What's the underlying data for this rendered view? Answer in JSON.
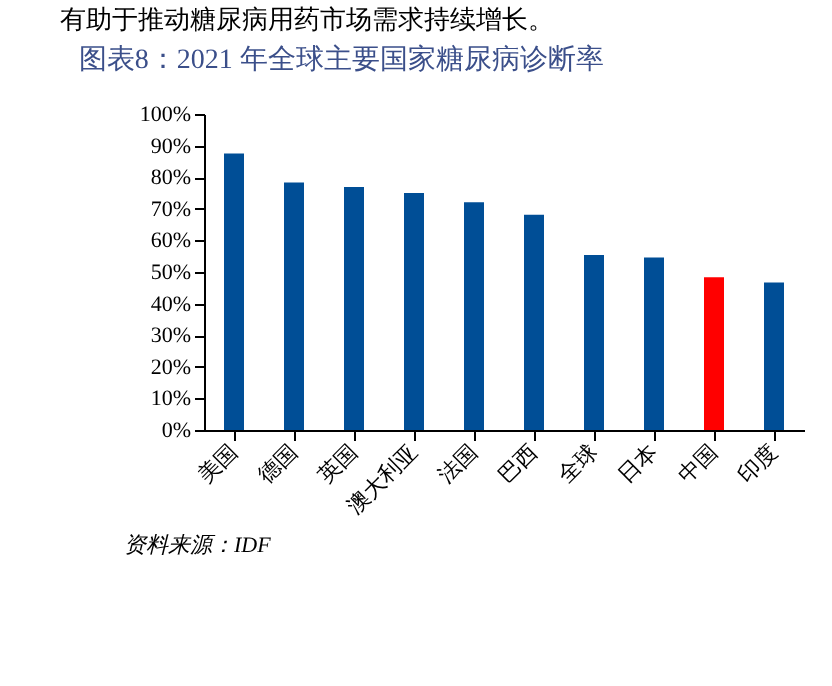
{
  "chart_data": {
    "type": "bar",
    "title": "图表8：2021 年全球主要国家糖尿病诊断率",
    "categories": [
      "美国",
      "德国",
      "英国",
      "澳大利亚",
      "法国",
      "巴西",
      "全球",
      "日本",
      "中国",
      "印度"
    ],
    "values": [
      87.5,
      78.3,
      76.9,
      75,
      72.1,
      68.1,
      55.4,
      54.6,
      48.3,
      46.7
    ],
    "colors": [
      "#004e96",
      "#004e96",
      "#004e96",
      "#004e96",
      "#004e96",
      "#004e96",
      "#004e96",
      "#004e96",
      "#ff0000",
      "#004e96"
    ],
    "ylim": [
      0,
      100
    ],
    "yticks": [
      {
        "value": 0,
        "label": "0%"
      },
      {
        "value": 10,
        "label": "10%"
      },
      {
        "value": 20,
        "label": "20%"
      },
      {
        "value": 30,
        "label": "30%"
      },
      {
        "value": 40,
        "label": "40%"
      },
      {
        "value": 50,
        "label": "50%"
      },
      {
        "value": 60,
        "label": "60%"
      },
      {
        "value": 70,
        "label": "70%"
      },
      {
        "value": 80,
        "label": "80%"
      },
      {
        "value": 90,
        "label": "90%"
      },
      {
        "value": 100,
        "label": "100%"
      }
    ],
    "grid": false,
    "annotations": [
      "有助于推动糖尿病用药市场需求持续增长。",
      "资料来源：IDF"
    ]
  }
}
